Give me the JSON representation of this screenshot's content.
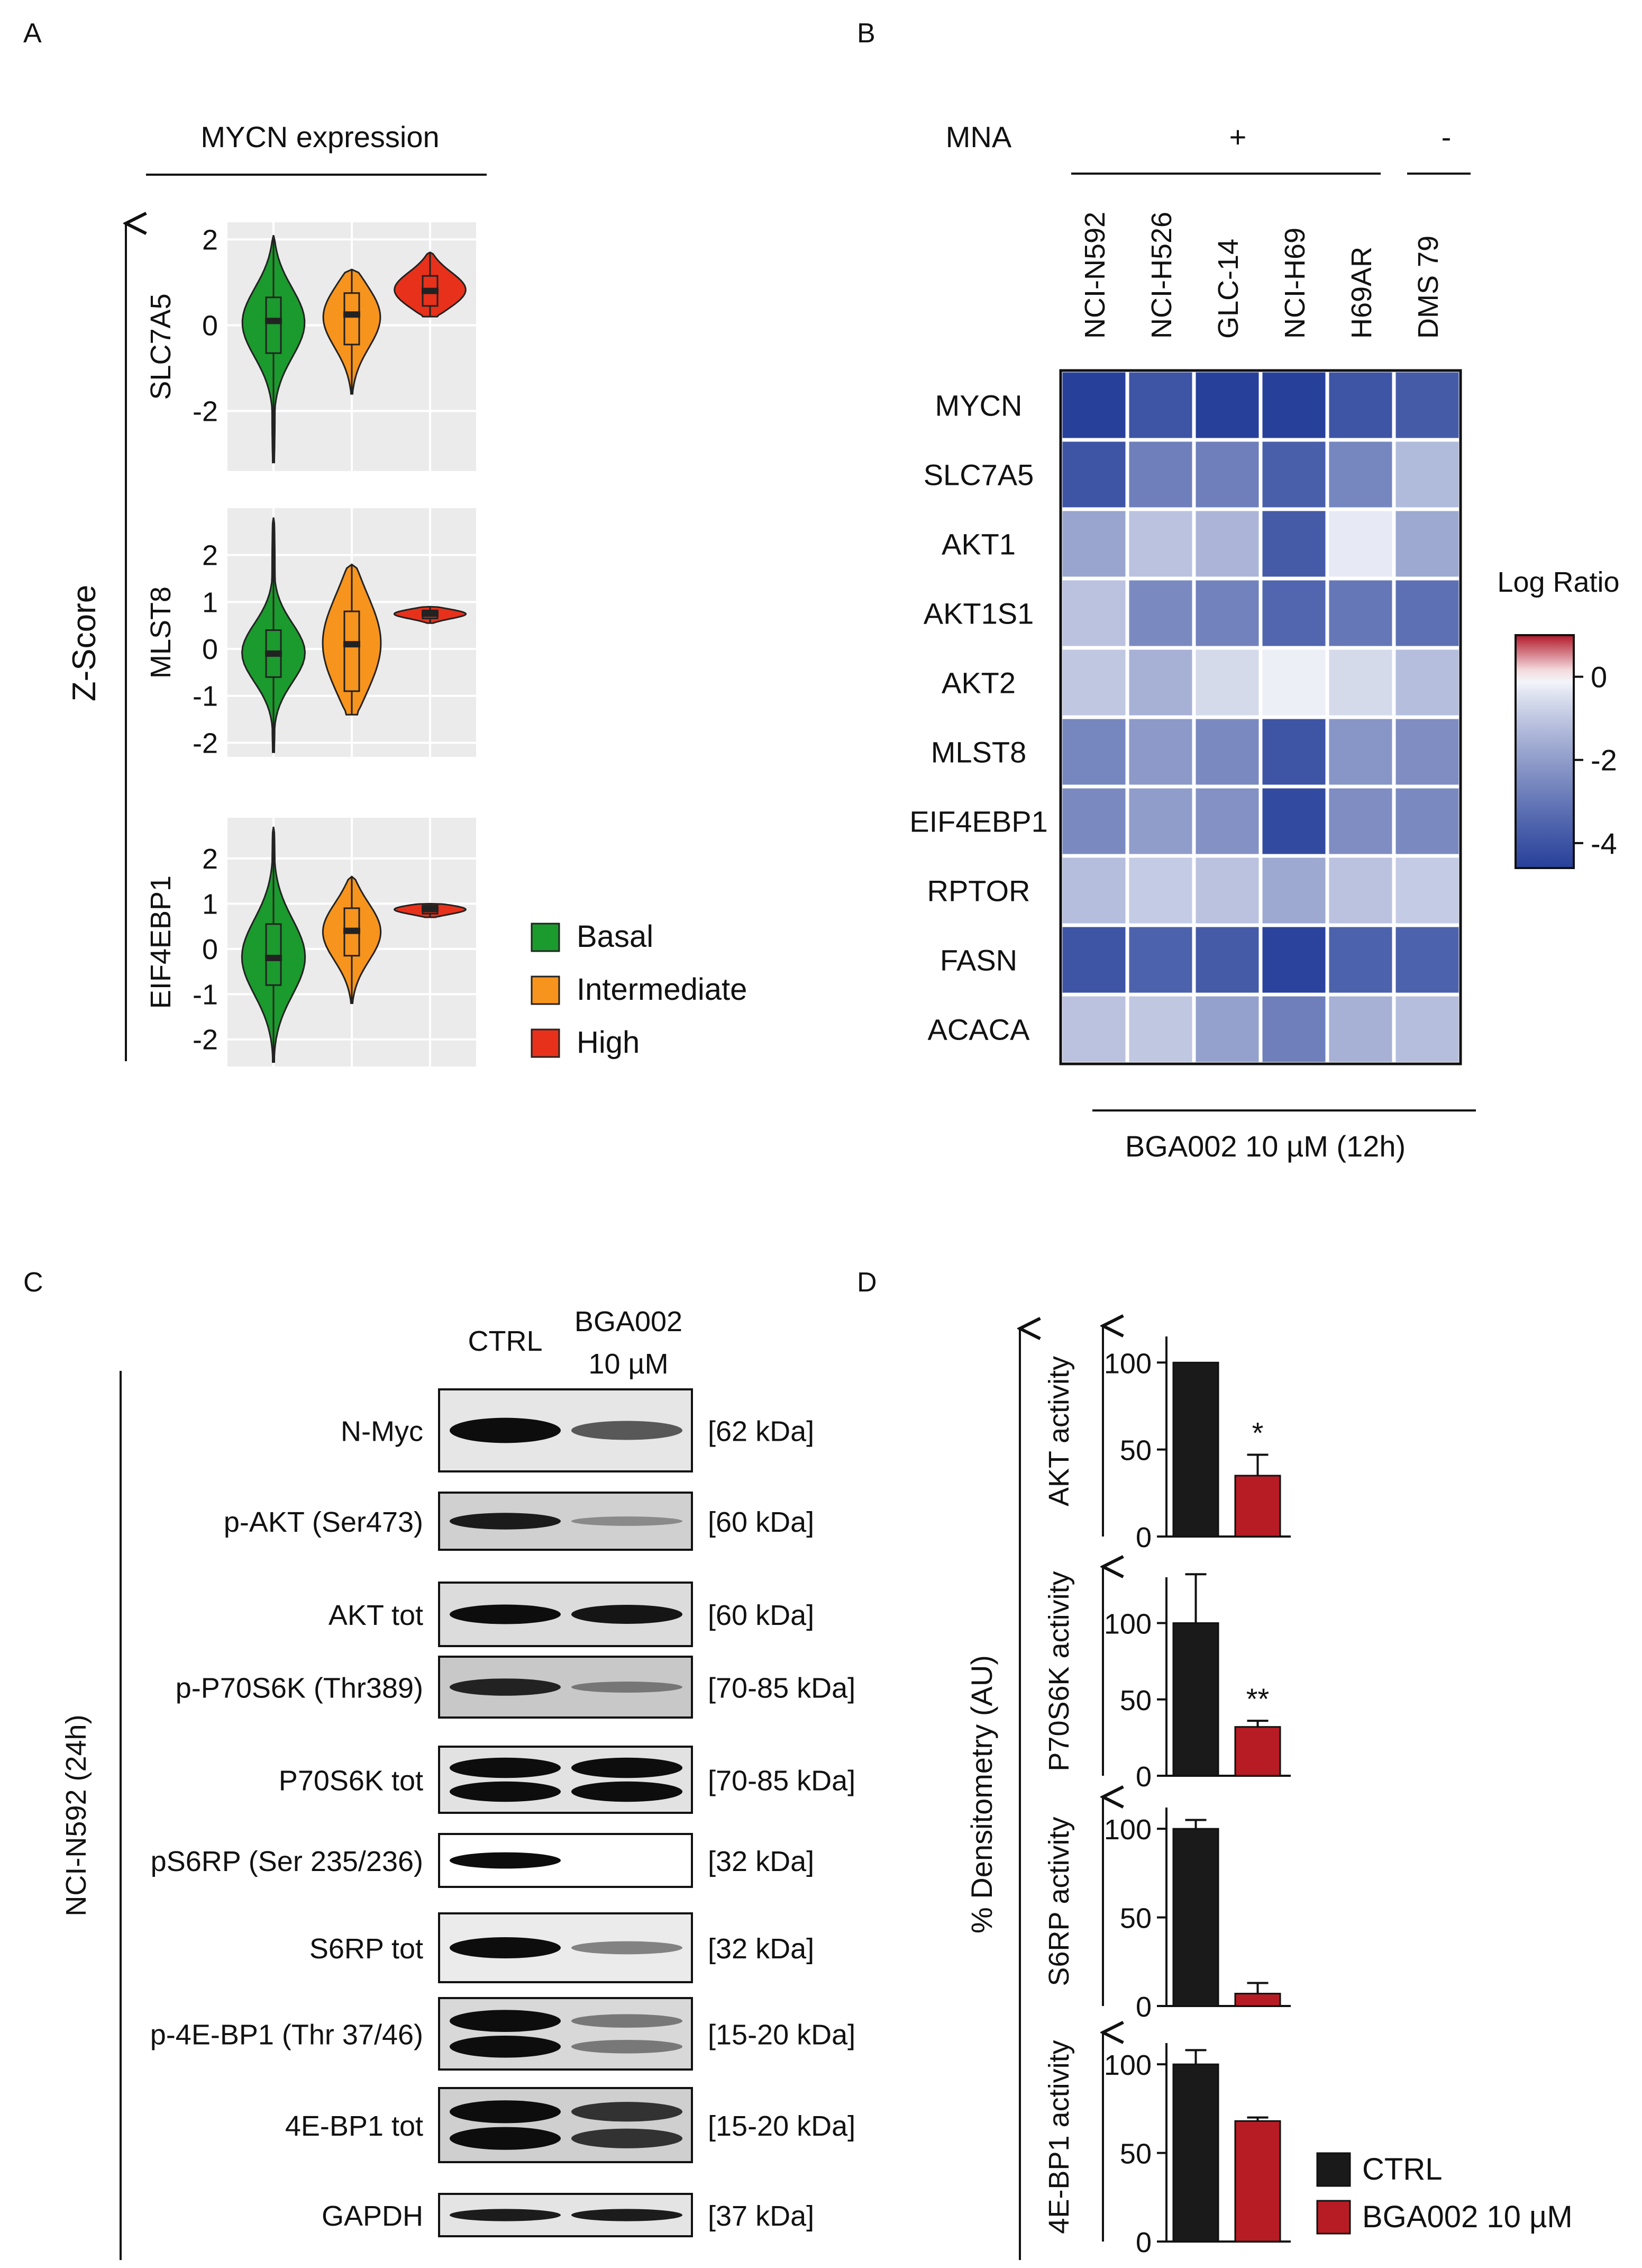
{
  "panels": {
    "A": {
      "letter": "A",
      "header": "MYCN expression",
      "y_axis_title": "Z-Score",
      "plots": [
        {
          "gene": "SLC7A5",
          "ticks": [
            "2",
            "0",
            "-2"
          ],
          "tick_values": [
            2,
            0,
            -2
          ],
          "ylim": [
            -3.4,
            2.4
          ],
          "violins": [
            {
              "group": "Basal",
              "min": -3.2,
              "q1": -0.65,
              "median": 0.1,
              "q3": 0.65,
              "max": 2.1
            },
            {
              "group": "Intermediate",
              "min": -1.6,
              "q1": -0.45,
              "median": 0.25,
              "q3": 0.75,
              "max": 1.3
            },
            {
              "group": "High",
              "min": 0.2,
              "q1": 0.45,
              "median": 0.8,
              "q3": 1.15,
              "max": 1.7
            }
          ]
        },
        {
          "gene": "MLST8",
          "ticks": [
            "2",
            "1",
            "0",
            "-1",
            "-2"
          ],
          "tick_values": [
            2,
            1,
            0,
            -1,
            -2
          ],
          "ylim": [
            -2.3,
            3.0
          ],
          "violins": [
            {
              "group": "Basal",
              "min": -2.2,
              "q1": -0.6,
              "median": -0.1,
              "q3": 0.4,
              "max": 2.8
            },
            {
              "group": "Intermediate",
              "min": -1.4,
              "q1": -0.9,
              "median": 0.1,
              "q3": 0.8,
              "max": 1.8
            },
            {
              "group": "High",
              "min": 0.55,
              "q1": 0.65,
              "median": 0.75,
              "q3": 0.82,
              "max": 0.9
            }
          ]
        },
        {
          "gene": "EIF4EBP1",
          "ticks": [
            "2",
            "1",
            "0",
            "-1",
            "-2"
          ],
          "tick_values": [
            2,
            1,
            0,
            -1,
            -2
          ],
          "ylim": [
            -2.6,
            2.9
          ],
          "violins": [
            {
              "group": "Basal",
              "min": -2.5,
              "q1": -0.8,
              "median": -0.2,
              "q3": 0.55,
              "max": 2.7
            },
            {
              "group": "Intermediate",
              "min": -1.2,
              "q1": -0.15,
              "median": 0.4,
              "q3": 0.9,
              "max": 1.6
            },
            {
              "group": "High",
              "min": 0.7,
              "q1": 0.78,
              "median": 0.88,
              "q3": 0.96,
              "max": 1.0
            }
          ]
        }
      ],
      "legend": [
        {
          "label": "Basal",
          "color": "#1b9a2e"
        },
        {
          "label": "Intermediate",
          "color": "#f7941d"
        },
        {
          "label": "High",
          "color": "#e8311a"
        }
      ]
    },
    "B": {
      "letter": "B",
      "mna_label": "MNA",
      "mna_plus": "+",
      "mna_minus": "-",
      "treatment": "BGA002 10 µM (12h)",
      "legend_title": "Log Ratio",
      "legend_ticks": [
        "0",
        "-2",
        "-4"
      ],
      "legend_tick_values": [
        0,
        -2,
        -4
      ],
      "colorscale": {
        "min": -4.6,
        "max": 1.0,
        "low": "#27409a",
        "mid": "#ffffff",
        "high": "#b2182b"
      },
      "heatmap": {
        "columns": [
          "NCI-N592",
          "NCI-H526",
          "GLC-14",
          "NCI-H69",
          "H69AR",
          "DMS 79"
        ],
        "rows": [
          "MYCN",
          "SLC7A5",
          "AKT1",
          "AKT1S1",
          "AKT2",
          "MLST8",
          "EIF4EBP1",
          "RPTOR",
          "FASN",
          "ACACA"
        ],
        "values": [
          [
            -4.7,
            -4.0,
            -4.6,
            -4.8,
            -4.0,
            -3.8
          ],
          [
            -4.0,
            -2.8,
            -2.8,
            -3.7,
            -2.6,
            -1.3
          ],
          [
            -1.8,
            -1.1,
            -1.4,
            -3.8,
            -0.3,
            -1.7
          ],
          [
            -1.1,
            -2.5,
            -2.7,
            -3.5,
            -3.0,
            -3.2
          ],
          [
            -1.0,
            -1.5,
            -0.6,
            -0.2,
            -0.6,
            -1.2
          ],
          [
            -2.6,
            -2.1,
            -2.5,
            -4.0,
            -2.2,
            -2.4
          ],
          [
            -2.5,
            -2.0,
            -2.3,
            -4.3,
            -2.4,
            -2.5
          ],
          [
            -1.2,
            -0.9,
            -1.1,
            -1.7,
            -1.1,
            -0.9
          ],
          [
            -4.0,
            -3.6,
            -3.8,
            -4.5,
            -3.6,
            -3.6
          ],
          [
            -1.1,
            -1.0,
            -1.9,
            -2.8,
            -1.5,
            -1.2
          ]
        ]
      }
    },
    "C": {
      "letter": "C",
      "side_label": "NCI-N592 (24h)",
      "col_ctrl": "CTRL",
      "col_treat_line1": "BGA002",
      "col_treat_line2": "10 µM",
      "blots": [
        {
          "name": "N-Myc",
          "kda": "[62 kDa]",
          "ctrl": 1.0,
          "treat": 0.55,
          "bg": "#e6e6e6",
          "double": false
        },
        {
          "name": "p-AKT (Ser473)",
          "kda": "[60 kDa]",
          "ctrl": 0.9,
          "treat": 0.15,
          "bg": "#d0d0d0",
          "double": false
        },
        {
          "name": "AKT tot",
          "kda": "[60 kDa]",
          "ctrl": 1.0,
          "treat": 0.95,
          "bg": "#dcdcdc",
          "double": false
        },
        {
          "name": "p-P70S6K (Thr389)",
          "kda": "[70-85 kDa]",
          "ctrl": 0.85,
          "treat": 0.25,
          "bg": "#c8c8c8",
          "double": false
        },
        {
          "name": "P70S6K tot",
          "kda": "[70-85 kDa]",
          "ctrl": 1.0,
          "treat": 1.0,
          "bg": "#e2e2e2",
          "double": true
        },
        {
          "name": "pS6RP (Ser 235/236)",
          "kda": "[32 kDa]",
          "ctrl": 1.0,
          "treat": 0.0,
          "bg": "#ffffff",
          "double": false
        },
        {
          "name": "S6RP tot",
          "kda": "[32 kDa]",
          "ctrl": 1.0,
          "treat": 0.3,
          "bg": "#ebebeb",
          "double": false
        },
        {
          "name": "p-4E-BP1 (Thr 37/46)",
          "kda": "[15-20 kDa]",
          "ctrl": 1.0,
          "treat": 0.3,
          "bg": "#d8d8d8",
          "double": true
        },
        {
          "name": "4E-BP1 tot",
          "kda": "[15-20 kDa]",
          "ctrl": 1.0,
          "treat": 0.75,
          "bg": "#cfcfcf",
          "double": true
        },
        {
          "name": "GAPDH",
          "kda": "[37 kDa]",
          "ctrl": 0.9,
          "treat": 0.9,
          "bg": "#e4e4e4",
          "double": false
        }
      ]
    },
    "D": {
      "letter": "D",
      "y_axis_title": "% Densitometry (AU)",
      "legend": [
        {
          "label": "CTRL",
          "color": "#1a1a1a"
        },
        {
          "label": "BGA002 10 µM",
          "color": "#b71c24"
        }
      ]
    }
  },
  "chart_data": [
    {
      "type": "bar",
      "title": "AKT activity",
      "ylabel": "AKT activity",
      "categories": [
        "CTRL",
        "BGA002 10 µM"
      ],
      "values": [
        100,
        35
      ],
      "errors": [
        0,
        12
      ],
      "ylim": [
        0,
        115
      ],
      "ticks": [
        0,
        50,
        100
      ],
      "significance": [
        "",
        "*"
      ]
    },
    {
      "type": "bar",
      "title": "P70S6K activity",
      "ylabel": "P70S6K activity",
      "categories": [
        "CTRL",
        "BGA002 10 µM"
      ],
      "values": [
        100,
        32
      ],
      "errors": [
        32,
        4
      ],
      "ylim": [
        0,
        130
      ],
      "ticks": [
        0,
        50,
        100
      ],
      "significance": [
        "",
        "**"
      ]
    },
    {
      "type": "bar",
      "title": "S6RP activity",
      "ylabel": "S6RP activity",
      "categories": [
        "CTRL",
        "BGA002 10 µM"
      ],
      "values": [
        100,
        7
      ],
      "errors": [
        5,
        6
      ],
      "ylim": [
        0,
        112
      ],
      "ticks": [
        0,
        50,
        100
      ],
      "significance": [
        "",
        ""
      ]
    },
    {
      "type": "bar",
      "title": "4E-BP1 activity",
      "ylabel": "4E-BP1 activity",
      "categories": [
        "CTRL",
        "BGA002 10 µM"
      ],
      "values": [
        100,
        68
      ],
      "errors": [
        8,
        2
      ],
      "ylim": [
        0,
        112
      ],
      "ticks": [
        0,
        50,
        100
      ],
      "significance": [
        "",
        ""
      ]
    }
  ]
}
